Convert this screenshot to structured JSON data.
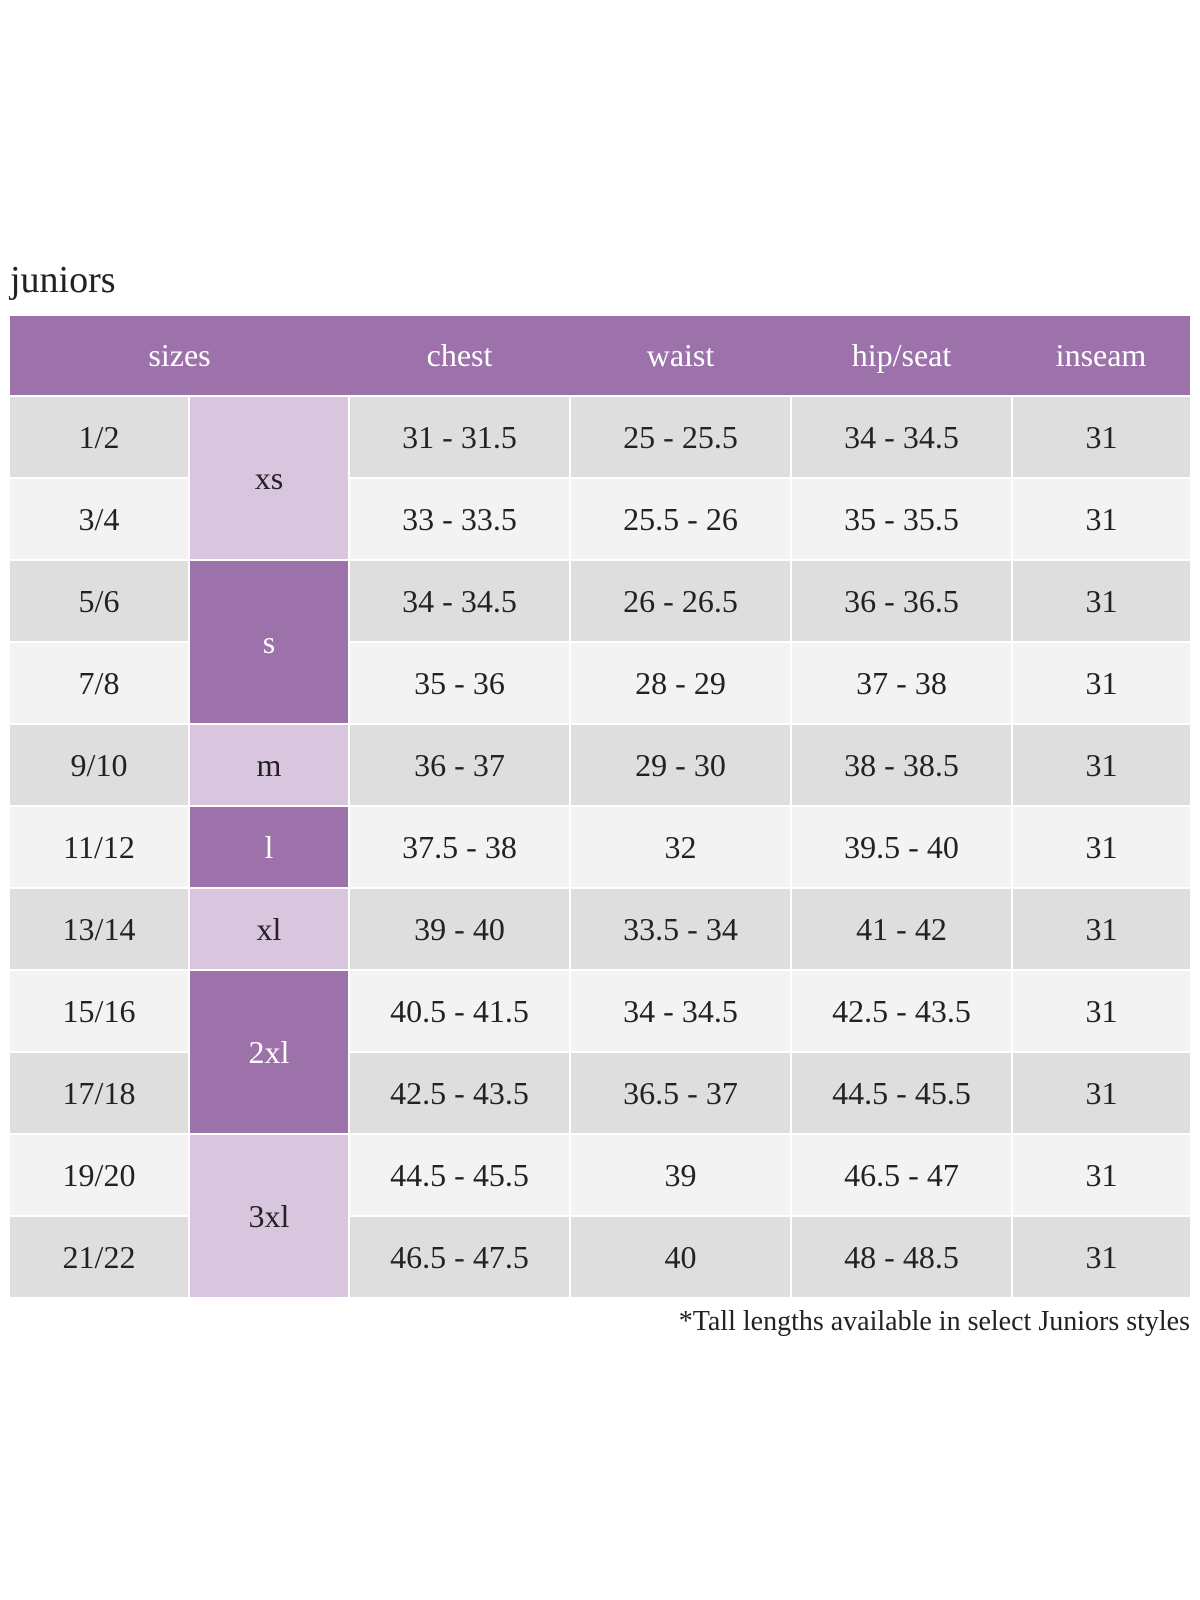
{
  "title": "juniors",
  "table": {
    "headers": [
      "sizes",
      "chest",
      "waist",
      "hip/seat",
      "inseam"
    ],
    "groups": [
      {
        "letter": "xs",
        "rows": [
          [
            "1/2",
            "31 - 31.5",
            "25 - 25.5",
            "34 - 34.5",
            "31"
          ],
          [
            "3/4",
            "33 - 33.5",
            "25.5 - 26",
            "35 - 35.5",
            "31"
          ]
        ]
      },
      {
        "letter": "s",
        "rows": [
          [
            "5/6",
            "34 - 34.5",
            "26 - 26.5",
            "36 - 36.5",
            "31"
          ],
          [
            "7/8",
            "35 - 36",
            "28 - 29",
            "37 - 38",
            "31"
          ]
        ]
      },
      {
        "letter": "m",
        "rows": [
          [
            "9/10",
            "36 - 37",
            "29 - 30",
            "38 - 38.5",
            "31"
          ]
        ]
      },
      {
        "letter": "l",
        "rows": [
          [
            "11/12",
            "37.5 - 38",
            "32",
            "39.5 - 40",
            "31"
          ]
        ]
      },
      {
        "letter": "xl",
        "rows": [
          [
            "13/14",
            "39 - 40",
            "33.5 - 34",
            "41 - 42",
            "31"
          ]
        ]
      },
      {
        "letter": "2xl",
        "rows": [
          [
            "15/16",
            "40.5 - 41.5",
            "34 - 34.5",
            "42.5 - 43.5",
            "31"
          ],
          [
            "17/18",
            "42.5 - 43.5",
            "36.5 - 37",
            "44.5 - 45.5",
            "31"
          ]
        ]
      },
      {
        "letter": "3xl",
        "rows": [
          [
            "19/20",
            "44.5 - 45.5",
            "39",
            "46.5 - 47",
            "31"
          ],
          [
            "21/22",
            "46.5 - 47.5",
            "40",
            "48 - 48.5",
            "31"
          ]
        ]
      }
    ]
  },
  "footnote": "*Tall lengths available in select Juniors styles"
}
